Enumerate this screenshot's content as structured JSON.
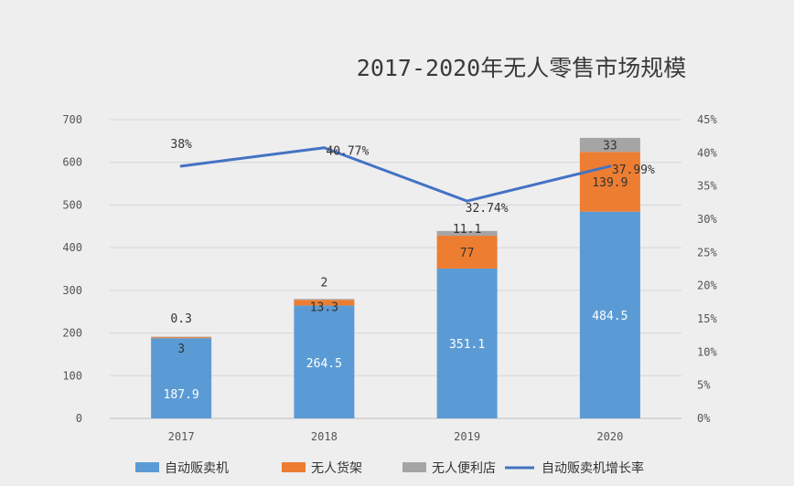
{
  "chart_data": {
    "type": "bar",
    "stacked": true,
    "title": "2017-2020年无人零售市场规模",
    "categories": [
      "2017",
      "2018",
      "2019",
      "2020"
    ],
    "series": [
      {
        "name": "自动贩卖机",
        "values": [
          187.9,
          264.5,
          351.1,
          484.5
        ],
        "color": "#5b9bd5",
        "label_color": "#ffffff"
      },
      {
        "name": "无人货架",
        "values": [
          3,
          13.3,
          77,
          139.9
        ],
        "color": "#ed7d31",
        "label_color": "#333333"
      },
      {
        "name": "无人便利店",
        "values": [
          0.3,
          2,
          11.1,
          33
        ],
        "color": "#a5a5a5",
        "label_color": "#333333"
      }
    ],
    "labels": {
      "自动贩卖机": [
        "187.9",
        "264.5",
        "351.1",
        "484.5"
      ],
      "无人货架": [
        "3",
        "13.3",
        "77",
        "139.9"
      ],
      "无人便利店": [
        "0.3",
        "2",
        "11.1",
        "33"
      ]
    },
    "line": {
      "name": "自动贩卖机增长率",
      "values": [
        38,
        40.77,
        32.74,
        37.99
      ],
      "labels": [
        "38%",
        "40.77%",
        "32.74%",
        "37.99%"
      ],
      "color": "#4472c4",
      "axis": "right"
    },
    "y_left": {
      "range": [
        0,
        700
      ],
      "ticks": [
        "0",
        "100",
        "200",
        "300",
        "400",
        "500",
        "600",
        "700"
      ]
    },
    "y_right": {
      "range": [
        0,
        45
      ],
      "ticks": [
        "0%",
        "5%",
        "10%",
        "15%",
        "20%",
        "25%",
        "30%",
        "35%",
        "40%",
        "45%"
      ]
    },
    "grid": true,
    "legend": "bottom"
  }
}
